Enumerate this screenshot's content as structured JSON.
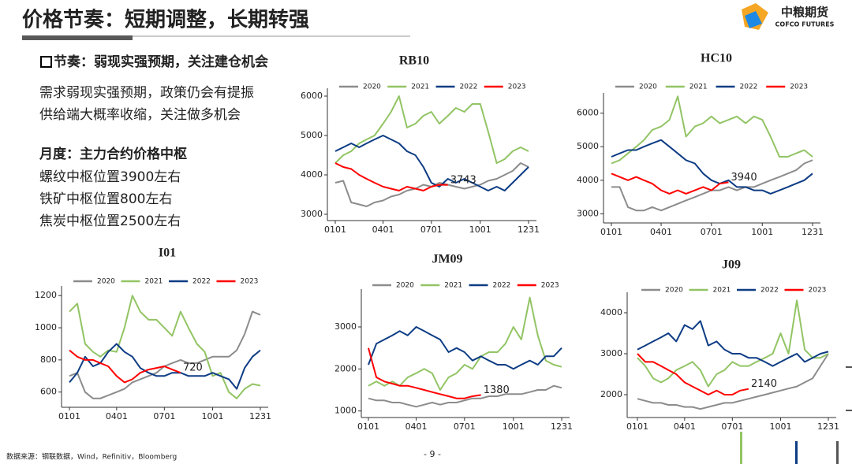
{
  "header": {
    "title": "价格节奏：短期调整，长期转强"
  },
  "logo": {
    "name": "中粮期货",
    "english": "COFCO FUTURES"
  },
  "notes": [
    "节奏：弱现实强预期，关注建仓机会",
    "需求弱现实强预期，政策仍会有提振",
    "供给端大概率收缩，关注做多机会",
    "月度：主力合约价格中枢",
    "螺纹中枢位置3900左右",
    "铁矿中枢位置800左右",
    "焦炭中枢位置2500左右"
  ],
  "footer": {
    "source": "数据来源：钢联数据，Wind，Refinitiv，Bloomberg",
    "page": "- 9 -"
  },
  "chart_data": [
    {
      "type": "line",
      "title": "RB10",
      "x": [
        1,
        16,
        31,
        46,
        60,
        75,
        91,
        106,
        121,
        136,
        152,
        167,
        182,
        197,
        213,
        228,
        244,
        259,
        274,
        289,
        305,
        320,
        335,
        350,
        365
      ],
      "xlim": [
        1,
        365
      ],
      "xticks": [
        {
          "value": 1,
          "label": "0101"
        },
        {
          "value": 91,
          "label": "0401"
        },
        {
          "value": 182,
          "label": "0701"
        },
        {
          "value": 274,
          "label": "1001"
        },
        {
          "value": 365,
          "label": "1231"
        }
      ],
      "ylim": [
        2900,
        6200
      ],
      "yticks": [
        3000,
        4000,
        5000,
        6000
      ],
      "series": [
        {
          "name": "2020",
          "color": "#8c8c8c",
          "values": [
            3800,
            3850,
            3300,
            3250,
            3200,
            3300,
            3350,
            3450,
            3500,
            3600,
            3650,
            3750,
            3700,
            3800,
            3750,
            3700,
            3650,
            3700,
            3750,
            3850,
            3900,
            4000,
            4100,
            4300,
            4200
          ]
        },
        {
          "name": "2021",
          "color": "#92c464",
          "values": [
            4300,
            4500,
            4600,
            4800,
            4900,
            5000,
            5300,
            5600,
            6000,
            5200,
            5300,
            5500,
            5600,
            5300,
            5500,
            5700,
            5600,
            5800,
            5800,
            5100,
            4300,
            4400,
            4600,
            4700,
            4600
          ]
        },
        {
          "name": "2022",
          "color": "#0d3c84",
          "values": [
            4600,
            4700,
            4800,
            4700,
            4800,
            4900,
            5000,
            4900,
            4800,
            4600,
            4500,
            4200,
            3800,
            3700,
            3900,
            3800,
            3900,
            3800,
            3700,
            3600,
            3700,
            3600,
            3800,
            4000,
            4200
          ]
        },
        {
          "name": "2023",
          "color": "#ff0000",
          "values": [
            4300,
            4200,
            4150,
            4000,
            3900,
            3800,
            3700,
            3650,
            3600,
            3700,
            3650,
            3600,
            3700,
            3750,
            3743,
            null,
            null,
            null,
            null,
            null,
            null,
            null,
            null,
            null,
            null
          ]
        }
      ]
    },
    {
      "type": "line",
      "title": "HC10",
      "x": [
        1,
        16,
        31,
        46,
        60,
        75,
        91,
        106,
        121,
        136,
        152,
        167,
        182,
        197,
        213,
        228,
        244,
        259,
        274,
        289,
        305,
        320,
        335,
        350,
        365
      ],
      "xlim": [
        1,
        365
      ],
      "xticks": [
        {
          "value": 1,
          "label": "0101"
        },
        {
          "value": 91,
          "label": "0401"
        },
        {
          "value": 182,
          "label": "0701"
        },
        {
          "value": 274,
          "label": "1001"
        },
        {
          "value": 365,
          "label": "1231"
        }
      ],
      "ylim": [
        2800,
        6600
      ],
      "yticks": [
        3000,
        4000,
        5000,
        6000
      ],
      "series": [
        {
          "name": "2020",
          "color": "#8c8c8c",
          "values": [
            3800,
            3800,
            3200,
            3100,
            3100,
            3200,
            3100,
            3200,
            3300,
            3400,
            3500,
            3600,
            3700,
            3700,
            3800,
            3700,
            3800,
            3800,
            3900,
            4000,
            4100,
            4200,
            4300,
            4500,
            4600
          ]
        },
        {
          "name": "2021",
          "color": "#92c464",
          "values": [
            4500,
            4600,
            4800,
            5000,
            5200,
            5500,
            5600,
            5800,
            6500,
            5300,
            5600,
            5700,
            5900,
            5700,
            5800,
            5900,
            5700,
            5900,
            5800,
            5300,
            4700,
            4700,
            4800,
            4900,
            4700
          ]
        },
        {
          "name": "2022",
          "color": "#0d3c84",
          "values": [
            4700,
            4800,
            4900,
            4900,
            5000,
            5100,
            5200,
            5000,
            4800,
            4600,
            4500,
            4200,
            4000,
            3900,
            4000,
            3800,
            3800,
            3700,
            3700,
            3600,
            3700,
            3800,
            3900,
            4000,
            4200
          ]
        },
        {
          "name": "2023",
          "color": "#ff0000",
          "values": [
            4200,
            4100,
            4000,
            4100,
            4000,
            3900,
            3700,
            3600,
            3700,
            3600,
            3700,
            3800,
            3700,
            3900,
            3940,
            null,
            null,
            null,
            null,
            null,
            null,
            null,
            null,
            null,
            null
          ]
        }
      ]
    },
    {
      "type": "line",
      "title": "I01",
      "x": [
        1,
        16,
        31,
        46,
        60,
        75,
        91,
        106,
        121,
        136,
        152,
        167,
        182,
        197,
        213,
        228,
        244,
        259,
        274,
        289,
        305,
        320,
        335,
        350,
        365
      ],
      "xlim": [
        1,
        365
      ],
      "xticks": [
        {
          "value": 1,
          "label": "0101"
        },
        {
          "value": 91,
          "label": "0401"
        },
        {
          "value": 182,
          "label": "0701"
        },
        {
          "value": 274,
          "label": "1001"
        },
        {
          "value": 365,
          "label": "1231"
        }
      ],
      "ylim": [
        520,
        1260
      ],
      "yticks": [
        600,
        800,
        1000,
        1200
      ],
      "series": [
        {
          "name": "2020",
          "color": "#8c8c8c",
          "values": [
            700,
            720,
            600,
            560,
            560,
            580,
            600,
            620,
            660,
            680,
            700,
            720,
            760,
            780,
            800,
            780,
            780,
            800,
            820,
            820,
            820,
            860,
            960,
            1100,
            1080
          ]
        },
        {
          "name": "2021",
          "color": "#92c464",
          "values": [
            1100,
            1150,
            900,
            850,
            820,
            860,
            850,
            1000,
            1200,
            1100,
            1050,
            1050,
            1000,
            950,
            1100,
            1000,
            900,
            850,
            700,
            720,
            600,
            560,
            620,
            650,
            640
          ]
        },
        {
          "name": "2022",
          "color": "#0d3c84",
          "values": [
            660,
            720,
            820,
            760,
            780,
            850,
            900,
            850,
            820,
            750,
            720,
            700,
            700,
            720,
            720,
            700,
            700,
            700,
            720,
            700,
            680,
            620,
            750,
            820,
            860
          ]
        },
        {
          "name": "2023",
          "color": "#ff0000",
          "values": [
            860,
            820,
            800,
            800,
            780,
            760,
            700,
            660,
            680,
            720,
            740,
            750,
            760,
            740,
            720,
            null,
            null,
            null,
            null,
            null,
            null,
            null,
            null,
            null,
            null
          ]
        }
      ]
    },
    {
      "type": "line",
      "title": "JM09",
      "x": [
        1,
        16,
        31,
        46,
        60,
        75,
        91,
        106,
        121,
        136,
        152,
        167,
        182,
        197,
        213,
        228,
        244,
        259,
        274,
        289,
        305,
        320,
        335,
        350,
        365
      ],
      "xlim": [
        1,
        365
      ],
      "xticks": [
        {
          "value": 1,
          "label": "0101"
        },
        {
          "value": 91,
          "label": "0401"
        },
        {
          "value": 182,
          "label": "0701"
        },
        {
          "value": 274,
          "label": "1001"
        },
        {
          "value": 365,
          "label": "1231"
        }
      ],
      "ylim": [
        900,
        3900
      ],
      "yticks": [
        1000,
        2000,
        3000
      ],
      "series": [
        {
          "name": "2020",
          "color": "#8c8c8c",
          "values": [
            1300,
            1250,
            1250,
            1200,
            1200,
            1150,
            1100,
            1150,
            1200,
            1150,
            1200,
            1200,
            1250,
            1300,
            1300,
            1350,
            1350,
            1400,
            1400,
            1400,
            1450,
            1500,
            1500,
            1600,
            1550
          ]
        },
        {
          "name": "2021",
          "color": "#92c464",
          "values": [
            1600,
            1700,
            1600,
            1700,
            1600,
            1800,
            1900,
            2000,
            1900,
            1500,
            1800,
            1900,
            2100,
            2000,
            2300,
            2400,
            2400,
            2600,
            3000,
            2700,
            3700,
            2800,
            2200,
            2100,
            2050
          ]
        },
        {
          "name": "2022",
          "color": "#0d3c84",
          "values": [
            2100,
            2600,
            2700,
            2800,
            2900,
            2800,
            3000,
            2900,
            2800,
            2700,
            2400,
            2500,
            2400,
            2200,
            2300,
            2200,
            2100,
            2100,
            2000,
            2100,
            2200,
            2100,
            2300,
            2300,
            2500
          ]
        },
        {
          "name": "2023",
          "color": "#ff0000",
          "values": [
            2500,
            1800,
            1700,
            1650,
            1600,
            1600,
            1550,
            1500,
            1450,
            1400,
            1350,
            1300,
            1300,
            1350,
            1380,
            null,
            null,
            null,
            null,
            null,
            null,
            null,
            null,
            null,
            null
          ]
        }
      ]
    },
    {
      "type": "line",
      "title": "J09",
      "x": [
        1,
        16,
        31,
        46,
        60,
        75,
        91,
        106,
        121,
        136,
        152,
        167,
        182,
        197,
        213,
        228,
        244,
        259,
        274,
        289,
        305,
        320,
        335,
        350,
        365
      ],
      "xlim": [
        1,
        365
      ],
      "xticks": [
        {
          "value": 1,
          "label": "0101"
        },
        {
          "value": 91,
          "label": "0401"
        },
        {
          "value": 182,
          "label": "0701"
        },
        {
          "value": 274,
          "label": "1001"
        },
        {
          "value": 365,
          "label": "1231"
        }
      ],
      "ylim": [
        1500,
        4500
      ],
      "yticks": [
        2000,
        3000,
        4000
      ],
      "series": [
        {
          "name": "2020",
          "color": "#8c8c8c",
          "values": [
            1900,
            1850,
            1800,
            1800,
            1750,
            1750,
            1700,
            1700,
            1650,
            1700,
            1750,
            1800,
            1800,
            1850,
            1900,
            1950,
            2000,
            2050,
            2100,
            2150,
            2200,
            2300,
            2400,
            2700,
            3000
          ]
        },
        {
          "name": "2021",
          "color": "#92c464",
          "values": [
            2900,
            2700,
            2400,
            2300,
            2400,
            2600,
            2700,
            2800,
            2600,
            2200,
            2500,
            2600,
            2800,
            2700,
            2700,
            2800,
            2900,
            3000,
            3500,
            3000,
            4300,
            3100,
            2900,
            2900,
            3000
          ]
        },
        {
          "name": "2022",
          "color": "#0d3c84",
          "values": [
            3100,
            3200,
            3300,
            3400,
            3500,
            3300,
            3700,
            3600,
            3800,
            3200,
            3300,
            3100,
            3000,
            3000,
            2900,
            2900,
            2800,
            2700,
            2800,
            2900,
            3000,
            2800,
            2900,
            3000,
            3050
          ]
        },
        {
          "name": "2023",
          "color": "#ff0000",
          "values": [
            3000,
            2800,
            2800,
            2700,
            2600,
            2500,
            2300,
            2200,
            2100,
            2000,
            2100,
            2000,
            2000,
            2100,
            2140,
            null,
            null,
            null,
            null,
            null,
            null,
            null,
            null,
            null,
            null
          ]
        }
      ]
    }
  ]
}
